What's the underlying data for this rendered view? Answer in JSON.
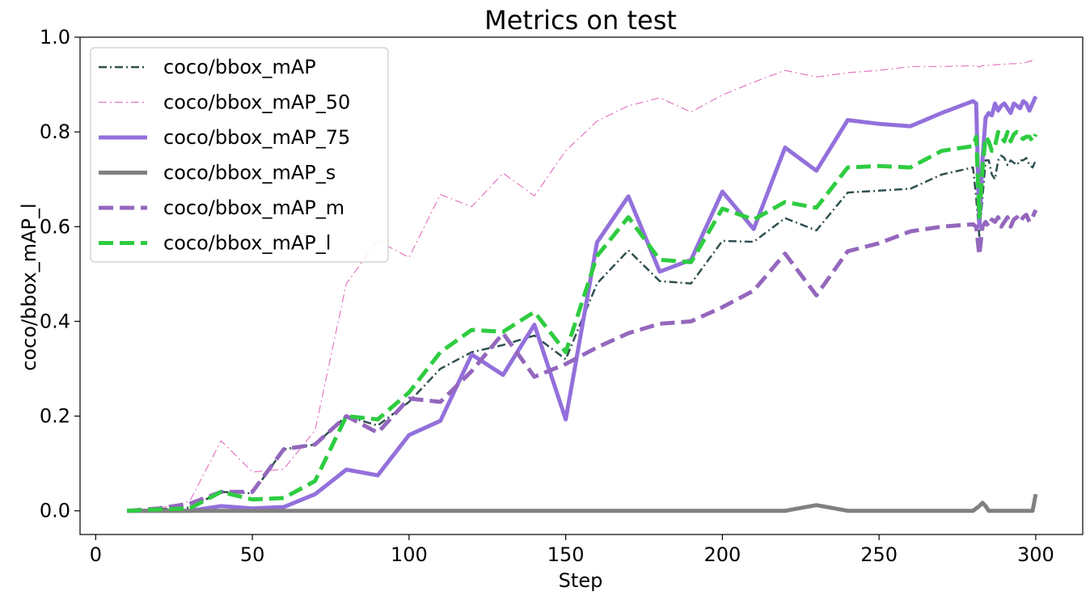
{
  "chart_data": {
    "type": "line",
    "title": "Metrics on test",
    "xlabel": "Step",
    "ylabel": "coco/bbox_mAP_l",
    "xlim": [
      -5,
      315
    ],
    "ylim": [
      -0.05,
      1.0
    ],
    "xticks": [
      0,
      50,
      100,
      150,
      200,
      250,
      300
    ],
    "yticks": [
      0.0,
      0.2,
      0.4,
      0.6,
      0.8,
      1.0
    ],
    "xtick_labels": [
      "0",
      "50",
      "100",
      "150",
      "200",
      "250",
      "300"
    ],
    "ytick_labels": [
      "0.0",
      "0.2",
      "0.4",
      "0.6",
      "0.8",
      "1.0"
    ],
    "grid": false,
    "legend_position": "top-left",
    "x": [
      10,
      20,
      30,
      40,
      50,
      60,
      70,
      80,
      90,
      100,
      110,
      120,
      130,
      140,
      150,
      160,
      170,
      180,
      190,
      200,
      210,
      220,
      230,
      240,
      250,
      260,
      270,
      280,
      281,
      282,
      283,
      284,
      285,
      286,
      287,
      288,
      289,
      290,
      291,
      292,
      293,
      294,
      295,
      296,
      297,
      298,
      299,
      300
    ],
    "series": [
      {
        "name": "coco/bbox_mAP",
        "color": "#2f4f4f",
        "style": "dashdot",
        "width": 2.5,
        "values": [
          0.0,
          0.003,
          0.007,
          0.04,
          0.037,
          0.13,
          0.14,
          0.2,
          0.18,
          0.23,
          0.3,
          0.335,
          0.35,
          0.37,
          0.32,
          0.48,
          0.55,
          0.485,
          0.48,
          0.57,
          0.568,
          0.618,
          0.592,
          0.672,
          0.676,
          0.68,
          0.71,
          0.725,
          0.66,
          0.58,
          0.66,
          0.74,
          0.74,
          0.71,
          0.7,
          0.74,
          0.75,
          0.745,
          0.73,
          0.74,
          0.735,
          0.73,
          0.74,
          0.74,
          0.745,
          0.73,
          0.725,
          0.74
        ]
      },
      {
        "name": "coco/bbox_mAP_50",
        "color": "#e377c2",
        "style": "dashdot",
        "width": 1.2,
        "values": [
          0.0,
          0.005,
          0.02,
          0.148,
          0.082,
          0.088,
          0.17,
          0.48,
          0.57,
          0.535,
          0.668,
          0.642,
          0.713,
          0.665,
          0.76,
          0.823,
          0.855,
          0.872,
          0.842,
          0.878,
          0.905,
          0.93,
          0.916,
          0.925,
          0.93,
          0.938,
          0.938,
          0.94,
          0.94,
          0.937,
          0.94,
          0.94,
          0.941,
          0.941,
          0.942,
          0.942,
          0.943,
          0.943,
          0.943,
          0.944,
          0.944,
          0.944,
          0.945,
          0.945,
          0.947,
          0.949,
          0.951,
          0.953
        ]
      },
      {
        "name": "coco/bbox_mAP_75",
        "color": "#9370db",
        "style": "solid",
        "width": 5,
        "values": [
          0.0,
          0.0,
          0.0,
          0.01,
          0.005,
          0.008,
          0.035,
          0.087,
          0.075,
          0.16,
          0.19,
          0.33,
          0.287,
          0.393,
          0.193,
          0.567,
          0.664,
          0.505,
          0.53,
          0.674,
          0.595,
          0.767,
          0.718,
          0.825,
          0.817,
          0.812,
          0.84,
          0.865,
          0.86,
          0.6,
          0.74,
          0.83,
          0.84,
          0.835,
          0.86,
          0.845,
          0.855,
          0.86,
          0.85,
          0.84,
          0.86,
          0.855,
          0.85,
          0.865,
          0.86,
          0.845,
          0.86,
          0.875
        ]
      },
      {
        "name": "coco/bbox_mAP_s",
        "color": "#808080",
        "style": "solid",
        "width": 5,
        "values": [
          0.0,
          0.0,
          0.0,
          0.0,
          0.0,
          0.0,
          0.0,
          0.0,
          0.0,
          0.0,
          0.0,
          0.0,
          0.0,
          0.0,
          0.0,
          0.0,
          0.0,
          0.0,
          0.0,
          0.0,
          0.0,
          0.0,
          0.012,
          0.0,
          0.0,
          0.0,
          0.0,
          0.0,
          0.005,
          0.01,
          0.017,
          0.01,
          0.0,
          0.0,
          0.0,
          0.0,
          0.0,
          0.0,
          0.0,
          0.0,
          0.0,
          0.0,
          0.0,
          0.0,
          0.0,
          0.0,
          0.0,
          0.035
        ]
      },
      {
        "name": "coco/bbox_mAP_m",
        "color": "#9467bd",
        "style": "dashed",
        "width": 5,
        "values": [
          0.0,
          0.005,
          0.015,
          0.04,
          0.04,
          0.13,
          0.14,
          0.2,
          0.165,
          0.237,
          0.23,
          0.295,
          0.375,
          0.283,
          0.31,
          0.345,
          0.375,
          0.395,
          0.4,
          0.43,
          0.465,
          0.543,
          0.455,
          0.548,
          0.565,
          0.59,
          0.6,
          0.605,
          0.6,
          0.54,
          0.6,
          0.61,
          0.6,
          0.615,
          0.61,
          0.62,
          0.6,
          0.61,
          0.62,
          0.6,
          0.615,
          0.62,
          0.61,
          0.62,
          0.625,
          0.61,
          0.62,
          0.635
        ]
      },
      {
        "name": "coco/bbox_mAP_l",
        "color": "#2ecc40",
        "style": "dashed",
        "width": 5,
        "values": [
          0.0,
          0.003,
          0.005,
          0.04,
          0.024,
          0.027,
          0.063,
          0.2,
          0.193,
          0.25,
          0.335,
          0.382,
          0.378,
          0.42,
          0.335,
          0.538,
          0.62,
          0.53,
          0.525,
          0.638,
          0.615,
          0.652,
          0.64,
          0.725,
          0.728,
          0.725,
          0.76,
          0.77,
          0.79,
          0.62,
          0.72,
          0.79,
          0.78,
          0.76,
          0.77,
          0.8,
          0.79,
          0.78,
          0.8,
          0.78,
          0.795,
          0.8,
          0.79,
          0.785,
          0.79,
          0.79,
          0.78,
          0.795
        ]
      }
    ]
  }
}
